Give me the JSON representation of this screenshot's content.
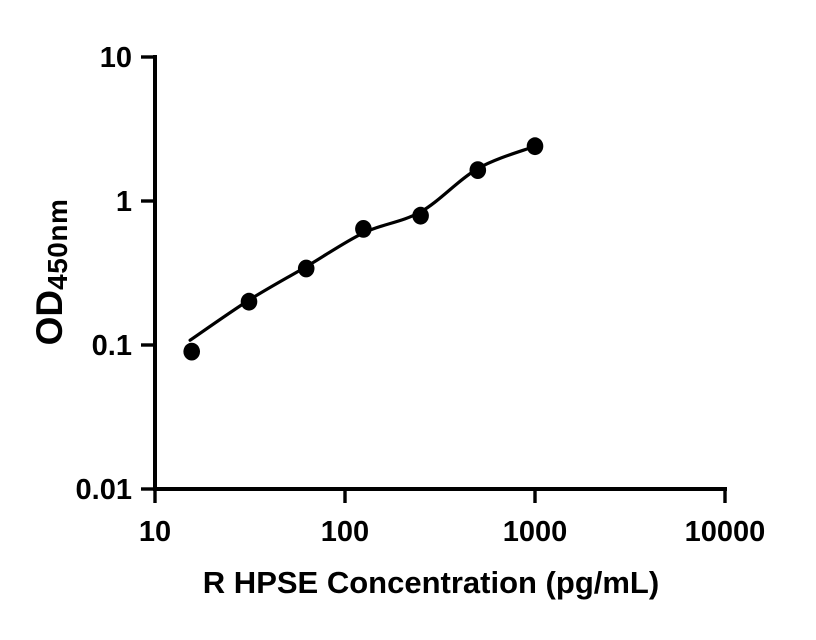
{
  "figure": {
    "background_color": "#ffffff",
    "foreground_color": "#000000",
    "description": "ELISA standard curve, log-log scatter plot with fitted line"
  },
  "chart_data": {
    "type": "scatter",
    "title": "",
    "xlabel": "R HPSE Concentration (pg/mL)",
    "ylabel": "OD",
    "ylabel_subscript": "450nm",
    "x_scale": "log",
    "y_scale": "log",
    "xlim": [
      10,
      10000
    ],
    "ylim": [
      0.01,
      10
    ],
    "x_ticks": [
      10,
      100,
      1000,
      10000
    ],
    "x_tick_labels": [
      "10",
      "100",
      "1000",
      "10000"
    ],
    "y_ticks": [
      10,
      1,
      0.1,
      0.01
    ],
    "y_tick_labels": [
      "10",
      "1",
      "0.1",
      "0.01"
    ],
    "grid": false,
    "legend": false,
    "marker_color": "#000000",
    "line_color": "#000000",
    "series": [
      {
        "name": "standard-points",
        "type": "scatter",
        "x": [
          15.6,
          31.25,
          62.5,
          125,
          250,
          500,
          1000
        ],
        "y": [
          0.09,
          0.2,
          0.34,
          0.64,
          0.79,
          1.64,
          2.4
        ]
      },
      {
        "name": "fitted-curve",
        "type": "line",
        "x": [
          15.3,
          31.25,
          62.5,
          125,
          250,
          500,
          1000
        ],
        "y": [
          0.108,
          0.205,
          0.35,
          0.6,
          0.84,
          1.68,
          2.4
        ]
      }
    ]
  }
}
